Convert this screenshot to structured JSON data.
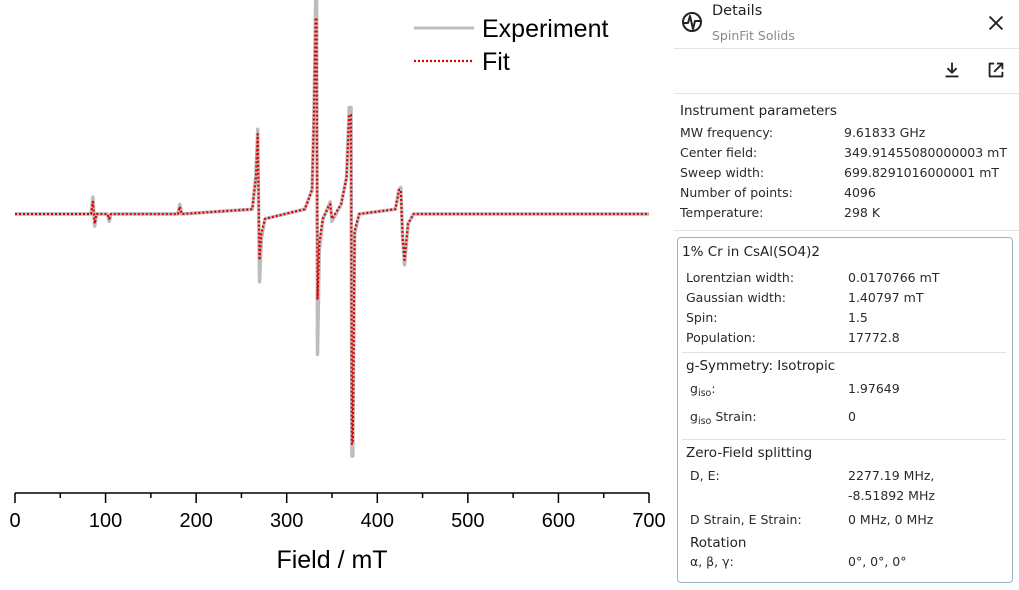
{
  "chart_data": {
    "type": "line",
    "xlabel": "Field / mT",
    "xlim": [
      0,
      700
    ],
    "xticks": [
      "0",
      "100",
      "200",
      "300",
      "400",
      "500",
      "600",
      "700"
    ],
    "yticks": [],
    "series": [
      {
        "name": "Experiment",
        "color": "#bdbdbd",
        "style": "solid",
        "x": [
          0,
          84,
          86,
          88,
          90,
          102,
          104,
          106,
          180,
          182,
          184,
          262,
          266,
          268,
          270,
          272,
          276,
          320,
          328,
          330,
          332,
          333,
          334,
          336,
          340,
          346,
          348,
          350,
          360,
          366,
          369,
          371,
          372,
          373,
          375,
          380,
          420,
          424,
          426,
          428,
          430,
          434,
          440,
          700
        ],
        "y": [
          0,
          0,
          0.07,
          -0.05,
          0,
          0,
          -0.03,
          0,
          0,
          0.04,
          0,
          0.02,
          0.16,
          0.35,
          -0.28,
          -0.1,
          -0.02,
          0.02,
          0.1,
          0.4,
          0.89,
          0.89,
          -0.58,
          -0.15,
          -0.02,
          0.03,
          0.05,
          -0.03,
          0.04,
          0.15,
          0.44,
          0.44,
          -1.0,
          -1.0,
          -0.08,
          0.0,
          0.02,
          0.1,
          0.11,
          -0.1,
          -0.21,
          -0.04,
          0,
          0
        ]
      },
      {
        "name": "Fit",
        "color": "#e00000",
        "style": "dotted",
        "x": [
          0,
          84,
          86,
          88,
          90,
          102,
          104,
          106,
          180,
          182,
          184,
          262,
          266,
          268,
          270,
          272,
          276,
          320,
          328,
          330,
          332,
          333,
          334,
          336,
          340,
          346,
          348,
          350,
          360,
          366,
          369,
          371,
          372,
          373,
          375,
          380,
          420,
          424,
          426,
          428,
          430,
          434,
          440,
          700
        ],
        "y": [
          0,
          0,
          0.05,
          -0.04,
          0,
          0,
          -0.02,
          0,
          0,
          0.03,
          0,
          0.02,
          0.15,
          0.33,
          -0.19,
          -0.08,
          -0.02,
          0.02,
          0.1,
          0.4,
          0.81,
          0.81,
          -0.35,
          -0.12,
          -0.02,
          0.03,
          0.04,
          -0.02,
          0.04,
          0.15,
          0.41,
          0.41,
          -0.95,
          -0.95,
          -0.07,
          0.0,
          0.02,
          0.1,
          0.1,
          -0.09,
          -0.19,
          -0.04,
          0,
          0
        ]
      }
    ],
    "legend": {
      "position": "top-right",
      "labels": [
        "Experiment",
        "Fit"
      ]
    },
    "grid": false
  },
  "details": {
    "title": "Details",
    "subtitle": "SpinFit Solids",
    "icons": {
      "app": "spectrum-icon",
      "close": "close-icon",
      "download": "download-icon",
      "open": "open-in-new-icon"
    },
    "instrument": {
      "heading": "Instrument parameters",
      "rows": [
        {
          "label": "MW frequency:",
          "value": "9.61833 GHz"
        },
        {
          "label": "Center field:",
          "value": "349.91455080000003 mT"
        },
        {
          "label": "Sweep width:",
          "value": "699.8291016000001 mT"
        },
        {
          "label": "Number of points:",
          "value": "4096"
        },
        {
          "label": "Temperature:",
          "value": "298 K"
        }
      ]
    },
    "component": {
      "heading": "1% Cr in CsAl(SO4)2",
      "rows": [
        {
          "label": "Lorentzian width:",
          "value": "0.0170766 mT"
        },
        {
          "label": "Gaussian width:",
          "value": "1.40797 mT"
        },
        {
          "label": "Spin:",
          "value": "1.5"
        },
        {
          "label": "Population:",
          "value": "17772.8"
        }
      ],
      "gsym": {
        "heading": "g-Symmetry: Isotropic",
        "g_sym": "g",
        "g_sub": "iso",
        "g_label_tail": ":",
        "g_value": "1.97649",
        "strain_tail": " Strain:",
        "strain_value": "0"
      },
      "zfs": {
        "heading": "Zero-Field splitting",
        "de_label": "D, E:",
        "de_value_1": "2277.19 MHz,",
        "de_value_2": "-8.51892 MHz",
        "strain_label": "D Strain, E Strain:",
        "strain_value": "0 MHz, 0 MHz",
        "rotation_heading": "Rotation",
        "angles_label": "α, β, γ:",
        "angles_value": "0°, 0°, 0°"
      }
    }
  }
}
